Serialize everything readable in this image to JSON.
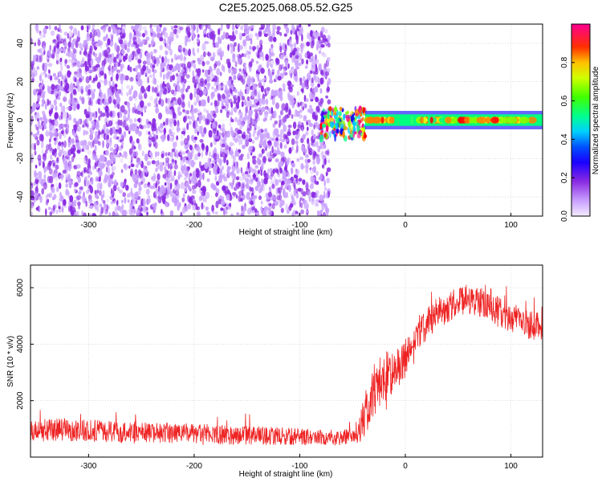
{
  "page": {
    "title": "C2E5.2025.068.05.52.G25"
  },
  "chart_data": [
    {
      "type": "heatmap",
      "xlabel": "Height of straight line (km)",
      "ylabel": "Frequency (Hz)",
      "xlim": [
        -355,
        130
      ],
      "ylim": [
        -50,
        50
      ],
      "x_ticks": [
        -300,
        -200,
        -100,
        0,
        100
      ],
      "y_ticks": [
        -40,
        -20,
        0,
        20,
        40
      ],
      "grid": true,
      "colorbar": {
        "label": "Normalized spectral amplitude",
        "range": [
          0.0,
          1.0
        ],
        "ticks": [
          0.0,
          0.2,
          0.4,
          0.6,
          0.8
        ],
        "tick_labels": [
          "0.0",
          "0.2",
          "0.4",
          "0.6",
          "0.8"
        ],
        "colormap": [
          "#e8d8ff",
          "#c9a0ff",
          "#8a2be2",
          "#5500ff",
          "#0000ff",
          "#00c8ff",
          "#00ff80",
          "#80ff00",
          "#ffff00",
          "#ff8000",
          "#ff0000",
          "#ff0080"
        ]
      },
      "regions": [
        {
          "name": "broadband noise",
          "x_range": [
            -355,
            -72
          ],
          "freq_range": [
            -50,
            50
          ],
          "amplitude": 0.1
        },
        {
          "name": "transition",
          "x_range": [
            -80,
            -38
          ],
          "freq_range": [
            -10,
            6
          ],
          "amplitude": 0.45
        },
        {
          "name": "carrier line",
          "x_range": [
            -38,
            130
          ],
          "freq_center": 0,
          "freq_halfwidth": 3,
          "amplitude": 0.75
        }
      ]
    },
    {
      "type": "line",
      "xlabel": "Height of straight line (km)",
      "ylabel": "SNR (10 * v/v)",
      "xlim": [
        -355,
        130
      ],
      "ylim": [
        0,
        6800
      ],
      "x_ticks": [
        -300,
        -200,
        -100,
        0,
        100
      ],
      "y_ticks": [
        2000,
        4000,
        6000
      ],
      "grid": true,
      "series": [
        {
          "color": "#ee2222",
          "x": [
            -355,
            -340,
            -320,
            -300,
            -280,
            -260,
            -240,
            -220,
            -200,
            -180,
            -160,
            -140,
            -120,
            -100,
            -80,
            -60,
            -50,
            -45,
            -40,
            -35,
            -30,
            -25,
            -20,
            -15,
            -10,
            -5,
            0,
            5,
            10,
            20,
            30,
            40,
            50,
            60,
            70,
            80,
            90,
            100,
            110,
            120,
            130
          ],
          "y": [
            900,
            950,
            980,
            950,
            900,
            880,
            860,
            850,
            820,
            800,
            780,
            760,
            740,
            720,
            700,
            690,
            720,
            900,
            1300,
            1800,
            2300,
            2600,
            2800,
            3000,
            3000,
            3200,
            3500,
            3800,
            4200,
            4700,
            5100,
            5300,
            5500,
            5600,
            5500,
            5300,
            5100,
            4900,
            4800,
            4700,
            4700
          ],
          "noise": [
            400,
            400,
            400,
            400,
            380,
            380,
            370,
            360,
            350,
            350,
            340,
            330,
            320,
            300,
            280,
            280,
            300,
            500,
            700,
            900,
            1000,
            1000,
            900,
            800,
            800,
            700,
            700,
            600,
            600,
            550,
            550,
            550,
            550,
            550,
            550,
            550,
            550,
            550,
            550,
            550,
            550
          ]
        }
      ]
    }
  ]
}
